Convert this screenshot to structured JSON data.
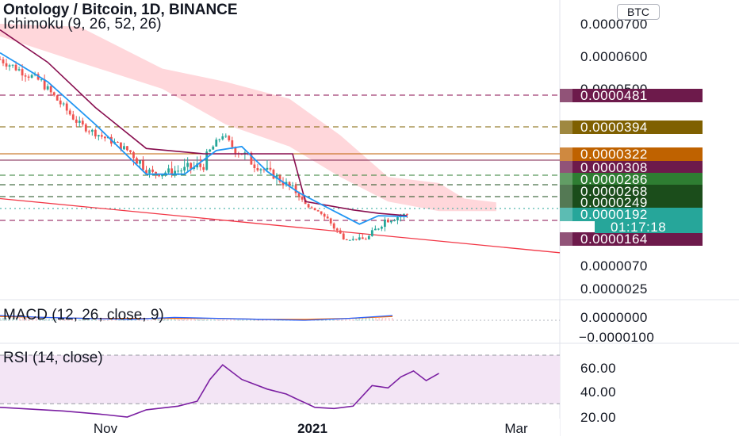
{
  "header": {
    "title": "Ontology / Bitcoin, 1D, BINANCE",
    "indicator": "Ichimoku (9, 26, 52, 26)",
    "currency_button": "BTC"
  },
  "macd_panel": {
    "label": "MACD (12, 26, close, 9)",
    "axis_ticks": [
      "0.0000000",
      "−0.0000100"
    ]
  },
  "rsi_panel": {
    "label": "RSI (14, close)",
    "axis_ticks": [
      "60.00",
      "40.00",
      "20.00"
    ]
  },
  "x_axis": {
    "labels": [
      "Nov",
      "2021",
      "Mar"
    ]
  },
  "colors": {
    "up": "#26a69a",
    "down": "#ef5350",
    "conversion_line": "#2196f3",
    "base_line": "#880e4f",
    "cloud": "#ffcdd2",
    "rsi_line": "#7b1fa2",
    "rsi_band": "#f3e5f5",
    "trendline": "#f23645"
  },
  "chart_data": {
    "type": "candlestick",
    "title": "Ontology / Bitcoin, 1D, BINANCE",
    "y_scale": "log",
    "price_axis_ticks": [
      "0.0000700",
      "0.0000600",
      "0.0000500",
      "0.0000070",
      "0.0000025"
    ],
    "ylim": [
      2.2e-06,
      7.5e-05
    ],
    "x_range": [
      "2020-09-25",
      "2021-03-20"
    ],
    "close_path": [
      {
        "x": "2020-09-25",
        "y": 5.9e-05
      },
      {
        "x": "2020-10-08",
        "y": 5.2e-05
      },
      {
        "x": "2020-10-20",
        "y": 4e-05
      },
      {
        "x": "2020-11-01",
        "y": 3.45e-05
      },
      {
        "x": "2020-11-12",
        "y": 2.96e-05
      },
      {
        "x": "2020-11-20",
        "y": 3.02e-05
      },
      {
        "x": "2020-11-28",
        "y": 3.1e-05
      },
      {
        "x": "2020-12-04",
        "y": 3.72e-05
      },
      {
        "x": "2020-12-08",
        "y": 3.3e-05
      },
      {
        "x": "2020-12-18",
        "y": 3.01e-05
      },
      {
        "x": "2020-12-28",
        "y": 2.63e-05
      },
      {
        "x": "2021-01-02",
        "y": 2.05e-05
      },
      {
        "x": "2021-01-12",
        "y": 1.6e-05
      },
      {
        "x": "2021-01-18",
        "y": 1.62e-05
      },
      {
        "x": "2021-01-24",
        "y": 1.85e-05
      },
      {
        "x": "2021-01-31",
        "y": 1.92e-05
      }
    ],
    "ichimoku": {
      "conversion_line": [
        {
          "x": "2020-09-25",
          "y": 6.1e-05
        },
        {
          "x": "2020-10-10",
          "y": 5.2e-05
        },
        {
          "x": "2020-10-25",
          "y": 4e-05
        },
        {
          "x": "2020-11-10",
          "y": 2.95e-05
        },
        {
          "x": "2020-11-22",
          "y": 2.95e-05
        },
        {
          "x": "2020-12-02",
          "y": 3.3e-05
        },
        {
          "x": "2020-12-10",
          "y": 3.4e-05
        },
        {
          "x": "2020-12-18",
          "y": 3e-05
        },
        {
          "x": "2020-12-28",
          "y": 2.65e-05
        },
        {
          "x": "2021-01-08",
          "y": 2.05e-05
        },
        {
          "x": "2021-01-16",
          "y": 1.8e-05
        },
        {
          "x": "2021-01-22",
          "y": 1.9e-05
        },
        {
          "x": "2021-01-31",
          "y": 1.89e-05
        }
      ],
      "base_line": [
        {
          "x": "2020-09-25",
          "y": 6.8e-05
        },
        {
          "x": "2020-10-10",
          "y": 5.8e-05
        },
        {
          "x": "2020-10-25",
          "y": 4.45e-05
        },
        {
          "x": "2020-11-10",
          "y": 3.35e-05
        },
        {
          "x": "2020-11-28",
          "y": 3.22e-05
        },
        {
          "x": "2020-12-10",
          "y": 3.22e-05
        },
        {
          "x": "2020-12-26",
          "y": 3.22e-05
        },
        {
          "x": "2020-12-30",
          "y": 2.5e-05
        },
        {
          "x": "2021-01-14",
          "y": 2.1e-05
        },
        {
          "x": "2021-01-22",
          "y": 1.95e-05
        },
        {
          "x": "2021-01-31",
          "y": 1.9e-05
        }
      ],
      "cloud_upper": [
        {
          "x": "2020-09-25",
          "y": 7e-05
        },
        {
          "x": "2020-10-20",
          "y": 6.9e-05
        },
        {
          "x": "2020-11-15",
          "y": 5.6e-05
        },
        {
          "x": "2020-12-05",
          "y": 5.2e-05
        },
        {
          "x": "2020-12-25",
          "y": 4.7e-05
        },
        {
          "x": "2021-01-10",
          "y": 3.7e-05
        },
        {
          "x": "2021-01-25",
          "y": 2.9e-05
        },
        {
          "x": "2021-02-10",
          "y": 2.8e-05
        },
        {
          "x": "2021-02-18",
          "y": 2.55e-05
        },
        {
          "x": "2021-02-28",
          "y": 2.48e-05
        }
      ],
      "cloud_lower": [
        {
          "x": "2020-09-25",
          "y": 6.6e-05
        },
        {
          "x": "2020-10-20",
          "y": 5.8e-05
        },
        {
          "x": "2020-11-15",
          "y": 5e-05
        },
        {
          "x": "2020-12-05",
          "y": 4e-05
        },
        {
          "x": "2020-12-25",
          "y": 3.4e-05
        },
        {
          "x": "2021-01-10",
          "y": 2.9e-05
        },
        {
          "x": "2021-01-25",
          "y": 2.5e-05
        },
        {
          "x": "2021-02-10",
          "y": 2.05e-05
        },
        {
          "x": "2021-02-28",
          "y": 2.05e-05
        }
      ]
    },
    "horizontal_levels": [
      {
        "value": "0.0000481",
        "color": "#880e4f",
        "style": "dashed"
      },
      {
        "value": "0.0000394",
        "color": "#7f6000",
        "style": "dashed"
      },
      {
        "value": "0.0000322",
        "color": "#bf5f00",
        "style": "solid"
      },
      {
        "value": "0.0000308",
        "color": "#7b1c4a",
        "style": "solid"
      },
      {
        "value": "0.0000286",
        "color": "#2e7d32",
        "style": "dashed"
      },
      {
        "value": "0.0000268",
        "color": "#1b4d1b",
        "style": "dashed"
      },
      {
        "value": "0.0000249",
        "color": "#1b4d1b",
        "style": "dashed"
      },
      {
        "value": "0.0000192",
        "color": "#26a69a",
        "style": "dotted"
      },
      {
        "value": "0.0000164",
        "color": "#880e4f",
        "style": "dashed"
      }
    ],
    "countdown_label": "01:17:18",
    "trendline": [
      {
        "x": "2020-09-25",
        "y": 2.55e-05
      },
      {
        "x": "2021-03-20",
        "y": 1.05e-05
      }
    ],
    "macd": {
      "macd_line": [
        5e-07,
        3e-07,
        2e-07,
        1e-07,
        3e-07,
        2e-07,
        1e-07,
        0.0,
        2e-07,
        5e-07
      ],
      "signal_line": [
        4e-07,
        3e-07,
        2e-07,
        2e-07,
        2e-07,
        2e-07,
        1e-07,
        1e-07,
        2e-07,
        4e-07
      ]
    },
    "rsi": {
      "bands": [
        70,
        30
      ],
      "values": [
        {
          "x": "2020-09-25",
          "y": 27
        },
        {
          "x": "2020-10-15",
          "y": 24
        },
        {
          "x": "2020-10-28",
          "y": 21
        },
        {
          "x": "2020-11-04",
          "y": 19
        },
        {
          "x": "2020-11-10",
          "y": 25
        },
        {
          "x": "2020-11-20",
          "y": 28
        },
        {
          "x": "2020-11-26",
          "y": 32
        },
        {
          "x": "2020-11-30",
          "y": 50
        },
        {
          "x": "2020-12-04",
          "y": 62
        },
        {
          "x": "2020-12-10",
          "y": 50
        },
        {
          "x": "2020-12-18",
          "y": 42
        },
        {
          "x": "2020-12-24",
          "y": 38
        },
        {
          "x": "2020-12-28",
          "y": 33
        },
        {
          "x": "2021-01-02",
          "y": 27
        },
        {
          "x": "2021-01-08",
          "y": 26
        },
        {
          "x": "2021-01-14",
          "y": 28
        },
        {
          "x": "2021-01-20",
          "y": 45
        },
        {
          "x": "2021-01-25",
          "y": 43
        },
        {
          "x": "2021-01-29",
          "y": 52
        },
        {
          "x": "2021-02-02",
          "y": 57
        },
        {
          "x": "2021-02-06",
          "y": 49
        },
        {
          "x": "2021-02-10",
          "y": 55
        }
      ]
    }
  }
}
